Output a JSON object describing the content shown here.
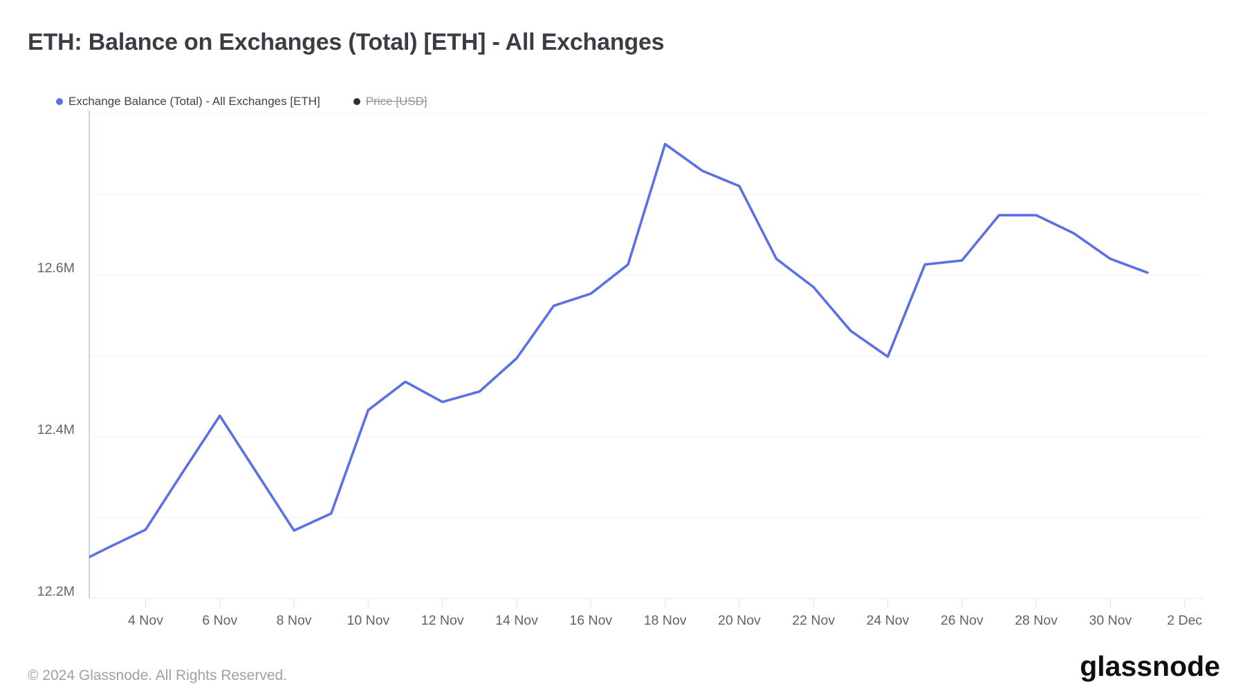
{
  "header": {
    "title": "ETH: Balance on Exchanges (Total) [ETH] - All Exchanges"
  },
  "legend": {
    "items": [
      {
        "label": "Exchange Balance (Total) - All Exchanges [ETH]",
        "color": "#5a70e4",
        "enabled": true
      },
      {
        "label": "Price [USD]",
        "color": "#2c3138",
        "enabled": false
      }
    ]
  },
  "footer": {
    "copyright": "© 2024 Glassnode. All Rights Reserved.",
    "brand": "glassnode"
  },
  "chart_data": {
    "type": "line",
    "title": "ETH: Balance on Exchanges (Total) [ETH] - All Exchanges",
    "xlabel": "",
    "ylabel": "",
    "y_unit": "M ETH",
    "dates": [
      "2 Nov",
      "3 Nov",
      "4 Nov",
      "5 Nov",
      "6 Nov",
      "7 Nov",
      "8 Nov",
      "9 Nov",
      "10 Nov",
      "11 Nov",
      "12 Nov",
      "13 Nov",
      "14 Nov",
      "15 Nov",
      "16 Nov",
      "17 Nov",
      "18 Nov",
      "19 Nov",
      "20 Nov",
      "21 Nov",
      "22 Nov",
      "23 Nov",
      "24 Nov",
      "25 Nov",
      "26 Nov",
      "27 Nov",
      "28 Nov",
      "29 Nov",
      "30 Nov",
      "1 Dec"
    ],
    "series": [
      {
        "name": "Exchange Balance (Total) - All Exchanges [ETH]",
        "color": "#5a70e4",
        "values": [
          12.24,
          12.263,
          12.285,
          12.356,
          12.426,
          12.355,
          12.284,
          12.305,
          12.433,
          12.468,
          12.443,
          12.456,
          12.497,
          12.562,
          12.577,
          12.613,
          12.762,
          12.729,
          12.71,
          12.62,
          12.585,
          12.531,
          12.499,
          12.613,
          12.618,
          12.674,
          12.674,
          12.652,
          12.62,
          12.603
        ]
      }
    ],
    "hidden_series": [
      {
        "name": "Price [USD]"
      }
    ],
    "x_tick_labels": [
      "4 Nov",
      "6 Nov",
      "8 Nov",
      "10 Nov",
      "12 Nov",
      "14 Nov",
      "16 Nov",
      "18 Nov",
      "20 Nov",
      "22 Nov",
      "24 Nov",
      "26 Nov",
      "28 Nov",
      "30 Nov",
      "2 Dec"
    ],
    "x_tick_day_offsets": [
      2,
      4,
      6,
      8,
      10,
      12,
      14,
      16,
      18,
      20,
      22,
      24,
      26,
      28,
      30
    ],
    "y_tick_labels": [
      "12.2M",
      "12.4M",
      "12.6M"
    ],
    "y_tick_values": [
      12.2,
      12.4,
      12.6
    ],
    "y_gridline_values": [
      12.3,
      12.4,
      12.5,
      12.6,
      12.7,
      12.8
    ],
    "ylim": [
      12.2,
      12.8
    ],
    "grid": "horizontal",
    "legend_position": "top-left",
    "line_width": 3.6
  }
}
